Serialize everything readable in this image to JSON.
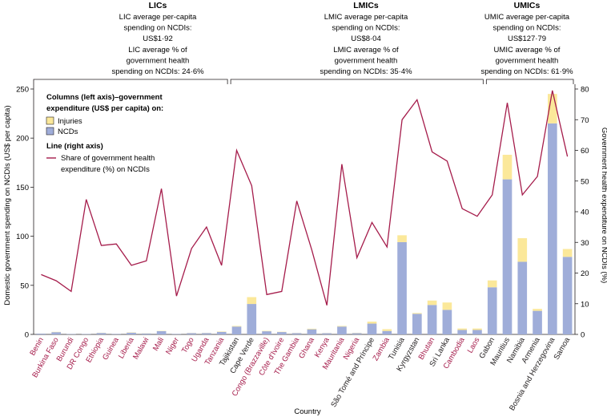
{
  "chart_data": {
    "type": "bar+line",
    "xlabel": "Country",
    "ylabel_left": "Domestic government spending on NCDIs (US$ per capita)",
    "ylabel_right": "Government health expenditure on NCDIs (%)",
    "ylim_left": [
      0,
      250
    ],
    "ylim_right": [
      0,
      80
    ],
    "yticks_left": [
      "0",
      "50",
      "100",
      "150",
      "200",
      "250"
    ],
    "yticks_right": [
      "0",
      "10",
      "20",
      "30",
      "40",
      "50",
      "60",
      "70",
      "80"
    ],
    "groups": [
      {
        "title": "LICs",
        "lines": [
          "LIC average per-capita",
          "spending on NCDIs:",
          "US$1·92",
          "LIC average % of",
          "government health",
          "spending on NCDIs: 24·6%"
        ]
      },
      {
        "title": "LMICs",
        "lines": [
          "LMIC average per-capita",
          "spending on NCDIs:",
          "US$8·04",
          "LMIC average % of",
          "government health",
          "spending on NCDIs: 35·4%"
        ]
      },
      {
        "title": "UMICs",
        "lines": [
          "UMIC average per-capita",
          "spending on NCDIs:",
          "US$127·79",
          "UMIC average % of",
          "government health",
          "spending on NCDIs: 61·9%"
        ]
      }
    ],
    "legend": {
      "columns_title": [
        "Columns (left axis)–government",
        "expenditure (US$ per capita) on:"
      ],
      "injuries": "Injuries",
      "ncds": "NCDs",
      "line_title": "Line (right axis)",
      "line_label": [
        "Share of government health",
        "expenditure (%) on NCDIs"
      ]
    },
    "colors": {
      "ncds": "#9fadd9",
      "injuries": "#fbe89a",
      "line": "#a51c4b",
      "highlight_label": "#a51c4b",
      "text": "#231f20"
    },
    "categories": [
      {
        "name": "Benin",
        "highlight": true,
        "ncds": 0.8,
        "injuries": 0.1,
        "share": 19.5
      },
      {
        "name": "Burkina Faso",
        "highlight": true,
        "ncds": 2.3,
        "injuries": 0.3,
        "share": 17.5
      },
      {
        "name": "Burundi",
        "highlight": true,
        "ncds": 0.5,
        "injuries": 0.1,
        "share": 14
      },
      {
        "name": "DR Congo",
        "highlight": true,
        "ncds": 0.5,
        "injuries": 0.1,
        "share": 44
      },
      {
        "name": "Ethiopia",
        "highlight": true,
        "ncds": 1.5,
        "injuries": 0.2,
        "share": 29
      },
      {
        "name": "Guinea",
        "highlight": true,
        "ncds": 0.6,
        "injuries": 0.1,
        "share": 29.5
      },
      {
        "name": "Liberia",
        "highlight": true,
        "ncds": 1.8,
        "injuries": 0.3,
        "share": 22.5
      },
      {
        "name": "Malawi",
        "highlight": true,
        "ncds": 1.0,
        "injuries": 0.2,
        "share": 24
      },
      {
        "name": "Mali",
        "highlight": true,
        "ncds": 3.3,
        "injuries": 0.3,
        "share": 47.5
      },
      {
        "name": "Niger",
        "highlight": true,
        "ncds": 0.6,
        "injuries": 0.1,
        "share": 12.5
      },
      {
        "name": "Togo",
        "highlight": true,
        "ncds": 1.3,
        "injuries": 0.2,
        "share": 28
      },
      {
        "name": "Uganda",
        "highlight": true,
        "ncds": 1.4,
        "injuries": 0.2,
        "share": 35
      },
      {
        "name": "Tanzania",
        "highlight": true,
        "ncds": 2.6,
        "injuries": 0.4,
        "share": 22.5
      },
      {
        "name": "Tajikistan",
        "highlight": false,
        "ncds": 8.0,
        "injuries": 0.6,
        "share": 60
      },
      {
        "name": "Cape Verde",
        "highlight": false,
        "ncds": 31.0,
        "injuries": 7.0,
        "share": 48.5
      },
      {
        "name": "Congo (Brazzaville)",
        "highlight": true,
        "ncds": 3.2,
        "injuries": 0.4,
        "share": 13
      },
      {
        "name": "Côte d'Ivoire",
        "highlight": true,
        "ncds": 2.4,
        "injuries": 0.3,
        "share": 14
      },
      {
        "name": "The Gambia",
        "highlight": true,
        "ncds": 1.3,
        "injuries": 0.2,
        "share": 43.5
      },
      {
        "name": "Ghana",
        "highlight": true,
        "ncds": 5.2,
        "injuries": 0.6,
        "share": 27.5
      },
      {
        "name": "Kenya",
        "highlight": true,
        "ncds": 1.2,
        "injuries": 0.2,
        "share": 9.5
      },
      {
        "name": "Mauritania",
        "highlight": true,
        "ncds": 8.0,
        "injuries": 0.6,
        "share": 55.5
      },
      {
        "name": "Nigeria",
        "highlight": true,
        "ncds": 1.3,
        "injuries": 0.3,
        "share": 25
      },
      {
        "name": "São Tomé and Príncipe",
        "highlight": false,
        "ncds": 11.0,
        "injuries": 2.0,
        "share": 36.5
      },
      {
        "name": "Zambia",
        "highlight": true,
        "ncds": 3.5,
        "injuries": 1.8,
        "share": 28.5
      },
      {
        "name": "Tunisia",
        "highlight": false,
        "ncds": 94.0,
        "injuries": 7.0,
        "share": 70
      },
      {
        "name": "Kyrgyzstan",
        "highlight": false,
        "ncds": 21.0,
        "injuries": 0.8,
        "share": 76.5
      },
      {
        "name": "Bhutan",
        "highlight": true,
        "ncds": 30.0,
        "injuries": 4.5,
        "share": 59.5
      },
      {
        "name": "Sri Lanka",
        "highlight": false,
        "ncds": 25.0,
        "injuries": 7.5,
        "share": 56.5
      },
      {
        "name": "Cambodia",
        "highlight": true,
        "ncds": 4.5,
        "injuries": 1.5,
        "share": 41
      },
      {
        "name": "Laos",
        "highlight": true,
        "ncds": 4.5,
        "injuries": 1.5,
        "share": 38.5
      },
      {
        "name": "Gabon",
        "highlight": false,
        "ncds": 48.0,
        "injuries": 7.0,
        "share": 45.5
      },
      {
        "name": "Mauritius",
        "highlight": false,
        "ncds": 158.0,
        "injuries": 25.0,
        "share": 75.5
      },
      {
        "name": "Namibia",
        "highlight": false,
        "ncds": 74.0,
        "injuries": 24.0,
        "share": 45.5
      },
      {
        "name": "Armenia",
        "highlight": false,
        "ncds": 24.0,
        "injuries": 2.0,
        "share": 51.5
      },
      {
        "name": "Bosnia and Herzegovina",
        "highlight": false,
        "ncds": 215.0,
        "injuries": 30.0,
        "share": 79.5
      },
      {
        "name": "Samoa",
        "highlight": false,
        "ncds": 79.0,
        "injuries": 8.0,
        "share": 58
      }
    ]
  }
}
